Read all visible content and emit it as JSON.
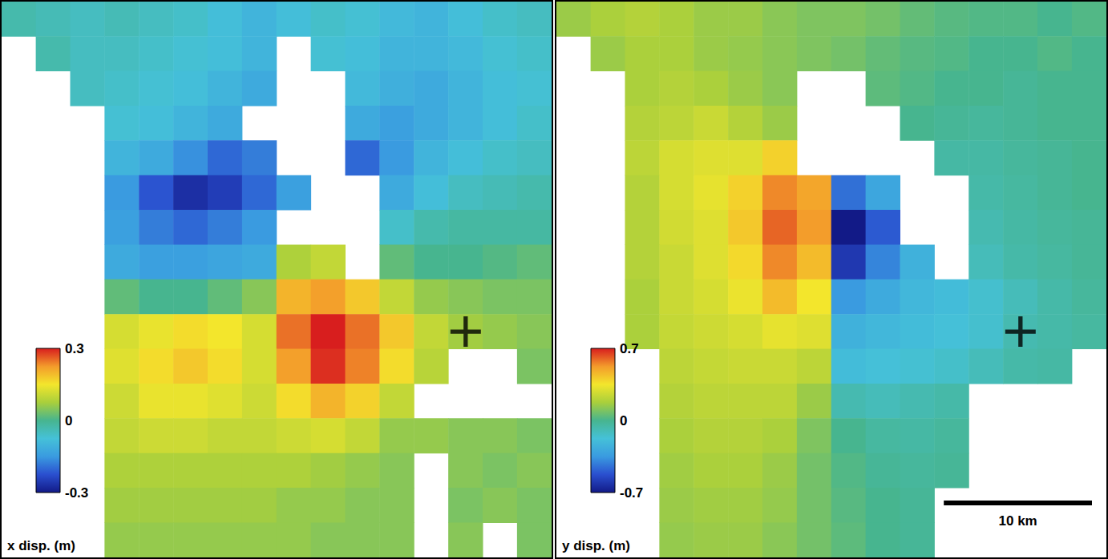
{
  "chart_data": [
    {
      "type": "heatmap",
      "title": "x disp. (m)",
      "tick_labels": false,
      "colorbar_range": [
        -0.3,
        0.3
      ],
      "colorbar_ticks": [
        -0.3,
        0,
        0.3
      ],
      "epicenter": {
        "col": 13,
        "row": 9
      },
      "cells": [
        [
          -0.03,
          -0.04,
          -0.05,
          -0.04,
          -0.05,
          -0.06,
          -0.08,
          -0.1,
          -0.08,
          -0.06,
          -0.07,
          -0.09,
          -0.1,
          -0.08,
          -0.06,
          -0.05
        ],
        [
          null,
          -0.03,
          -0.05,
          -0.05,
          -0.06,
          -0.07,
          -0.08,
          -0.1,
          null,
          -0.07,
          -0.08,
          -0.1,
          -0.1,
          -0.09,
          -0.07,
          -0.06
        ],
        [
          null,
          null,
          -0.05,
          -0.06,
          -0.07,
          -0.08,
          -0.1,
          -0.12,
          null,
          null,
          -0.09,
          -0.11,
          -0.12,
          -0.1,
          -0.08,
          -0.07
        ],
        [
          null,
          null,
          null,
          -0.07,
          -0.08,
          -0.1,
          -0.12,
          null,
          null,
          null,
          -0.12,
          -0.14,
          -0.12,
          -0.1,
          -0.08,
          -0.06
        ],
        [
          null,
          null,
          null,
          -0.1,
          -0.12,
          -0.16,
          -0.2,
          -0.18,
          null,
          null,
          -0.2,
          -0.15,
          -0.1,
          -0.08,
          -0.06,
          -0.05
        ],
        [
          null,
          null,
          null,
          -0.15,
          -0.22,
          -0.27,
          -0.25,
          -0.2,
          -0.14,
          null,
          null,
          -0.12,
          -0.08,
          -0.05,
          -0.04,
          -0.03
        ],
        [
          null,
          null,
          null,
          -0.14,
          -0.18,
          -0.2,
          -0.18,
          -0.15,
          null,
          null,
          null,
          -0.06,
          -0.03,
          -0.02,
          -0.02,
          -0.02
        ],
        [
          null,
          null,
          null,
          -0.12,
          -0.14,
          -0.14,
          -0.13,
          -0.12,
          0.08,
          0.1,
          null,
          0.02,
          0.0,
          0.0,
          0.01,
          0.02
        ],
        [
          null,
          null,
          null,
          0.02,
          0.0,
          0.0,
          0.02,
          0.05,
          0.2,
          0.22,
          0.18,
          0.1,
          0.06,
          0.05,
          0.04,
          0.04
        ],
        [
          null,
          null,
          null,
          0.12,
          0.14,
          0.16,
          0.15,
          0.12,
          0.25,
          0.3,
          0.25,
          0.18,
          0.1,
          0.07,
          0.06,
          0.05
        ],
        [
          null,
          null,
          null,
          0.13,
          0.16,
          0.18,
          0.16,
          0.12,
          0.22,
          0.29,
          0.24,
          0.16,
          0.09,
          null,
          null,
          0.04
        ],
        [
          null,
          null,
          null,
          0.11,
          0.14,
          0.14,
          0.13,
          0.11,
          0.16,
          0.2,
          0.17,
          0.1,
          null,
          null,
          null,
          null
        ],
        [
          null,
          null,
          null,
          0.1,
          0.11,
          0.11,
          0.1,
          0.1,
          0.11,
          0.12,
          0.1,
          0.06,
          0.06,
          0.05,
          0.05,
          0.04
        ],
        [
          null,
          null,
          null,
          0.08,
          0.08,
          0.08,
          0.08,
          0.08,
          0.08,
          0.07,
          0.06,
          0.05,
          null,
          0.05,
          0.04,
          0.05
        ],
        [
          null,
          null,
          null,
          0.07,
          0.07,
          0.07,
          0.07,
          0.07,
          0.06,
          0.06,
          0.05,
          0.05,
          null,
          0.04,
          0.05,
          0.04
        ],
        [
          null,
          null,
          null,
          0.06,
          0.06,
          0.06,
          0.06,
          0.06,
          0.06,
          0.05,
          0.05,
          0.05,
          null,
          0.05,
          null,
          0.04
        ]
      ]
    },
    {
      "type": "heatmap",
      "title": "y disp. (m)",
      "tick_labels": false,
      "colorbar_range": [
        -0.7,
        0.7
      ],
      "colorbar_ticks": [
        -0.7,
        0,
        0.7
      ],
      "epicenter": {
        "col": 13,
        "row": 9
      },
      "cell_size_km": 2.32,
      "scale_bar": {
        "label": "10 km",
        "length_km": 10
      },
      "cells": [
        [
          0.15,
          0.18,
          0.2,
          0.18,
          0.15,
          0.15,
          0.12,
          0.1,
          0.1,
          0.08,
          0.05,
          0.03,
          0.02,
          0.02,
          0.0,
          0.02
        ],
        [
          null,
          0.15,
          0.18,
          0.18,
          0.15,
          0.14,
          0.12,
          0.1,
          0.08,
          0.05,
          0.03,
          0.02,
          0.0,
          0.0,
          0.02,
          0.0
        ],
        [
          null,
          null,
          0.18,
          0.2,
          0.18,
          0.15,
          0.12,
          null,
          null,
          0.04,
          0.02,
          0.0,
          0.0,
          -0.02,
          0.0,
          0.0
        ],
        [
          null,
          null,
          0.2,
          0.22,
          0.25,
          0.2,
          0.15,
          null,
          null,
          null,
          0.0,
          -0.02,
          -0.03,
          -0.02,
          0.0,
          0.0
        ],
        [
          null,
          null,
          0.22,
          0.28,
          0.3,
          0.3,
          0.4,
          null,
          null,
          null,
          null,
          -0.05,
          -0.05,
          -0.03,
          -0.02,
          0.0
        ],
        [
          null,
          null,
          0.2,
          0.28,
          0.32,
          0.4,
          0.55,
          0.5,
          -0.45,
          -0.3,
          null,
          null,
          -0.06,
          -0.04,
          -0.02,
          0.0
        ],
        [
          null,
          null,
          0.2,
          0.27,
          0.3,
          0.42,
          0.6,
          0.52,
          -0.7,
          -0.5,
          null,
          null,
          -0.08,
          -0.05,
          -0.03,
          -0.02
        ],
        [
          null,
          null,
          0.2,
          0.25,
          0.3,
          0.38,
          0.55,
          0.45,
          -0.6,
          -0.4,
          -0.25,
          null,
          -0.1,
          -0.06,
          -0.04,
          -0.02
        ],
        [
          null,
          null,
          0.18,
          0.25,
          0.28,
          0.33,
          0.45,
          0.35,
          -0.35,
          -0.28,
          -0.22,
          -0.2,
          -0.15,
          -0.1,
          -0.06,
          -0.03
        ],
        [
          null,
          null,
          0.18,
          0.24,
          0.26,
          0.28,
          0.32,
          0.3,
          -0.25,
          -0.22,
          -0.2,
          -0.18,
          -0.15,
          -0.08,
          -0.06,
          -0.04
        ],
        [
          null,
          null,
          null,
          0.22,
          0.24,
          0.25,
          0.25,
          0.22,
          -0.2,
          -0.18,
          -0.16,
          -0.14,
          -0.1,
          -0.06,
          -0.05,
          null
        ],
        [
          null,
          null,
          null,
          0.2,
          0.22,
          0.22,
          0.22,
          0.15,
          -0.08,
          -0.1,
          -0.08,
          -0.06,
          null,
          null,
          null,
          null
        ],
        [
          null,
          null,
          null,
          0.18,
          0.2,
          0.2,
          0.18,
          0.1,
          0.0,
          -0.04,
          -0.05,
          -0.03,
          null,
          null,
          null,
          null
        ],
        [
          null,
          null,
          null,
          0.16,
          0.18,
          0.18,
          0.15,
          0.08,
          0.02,
          -0.02,
          -0.03,
          -0.02,
          null,
          null,
          null,
          null
        ],
        [
          null,
          null,
          null,
          0.15,
          0.16,
          0.16,
          0.14,
          0.08,
          0.03,
          0.0,
          -0.02,
          null,
          null,
          null,
          null,
          null
        ],
        [
          null,
          null,
          null,
          0.14,
          0.15,
          0.15,
          0.12,
          0.08,
          0.04,
          0.0,
          -0.02,
          null,
          null,
          null,
          null,
          null
        ]
      ]
    }
  ]
}
